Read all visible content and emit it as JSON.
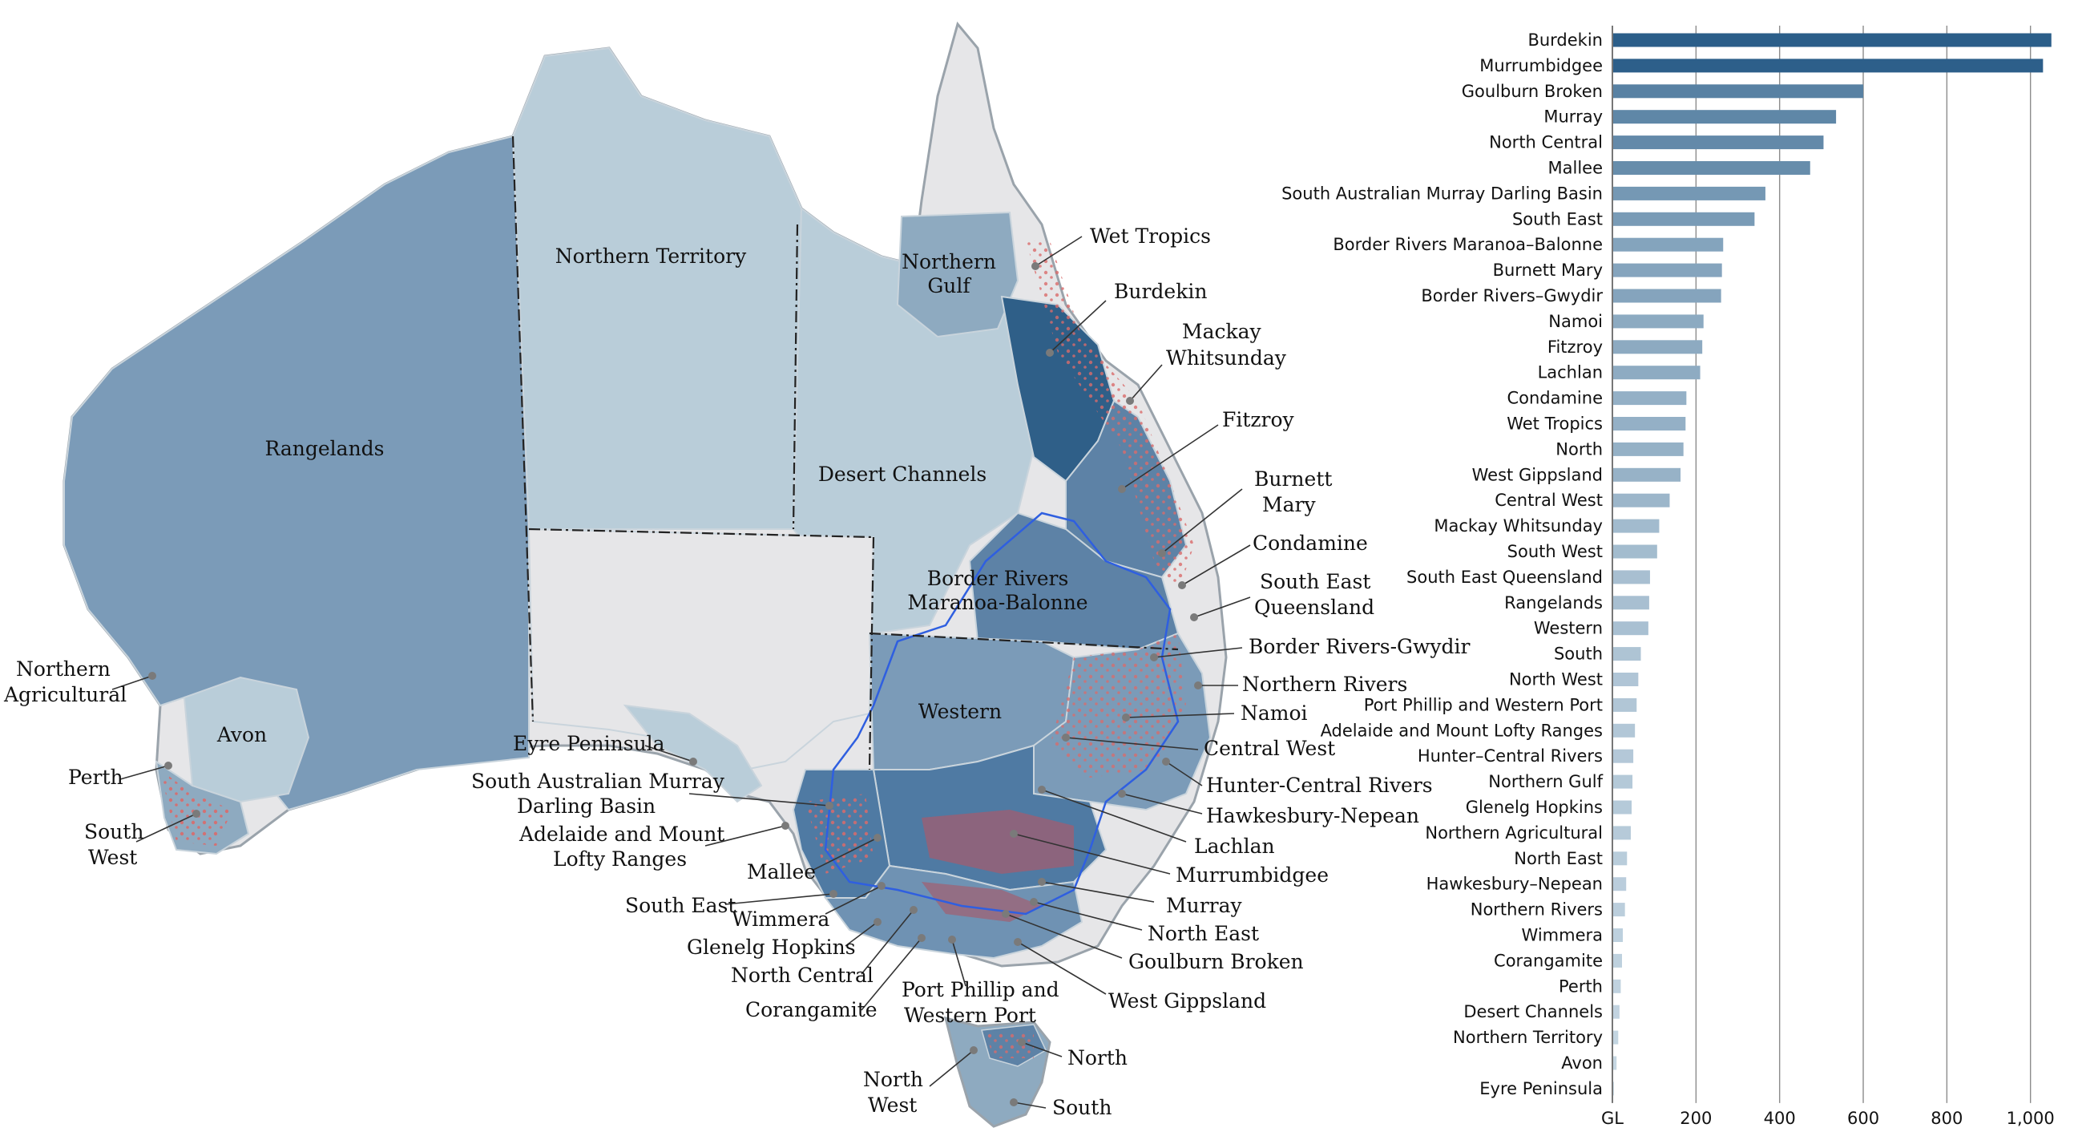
{
  "map": {
    "colors": {
      "ocean": "#ffffff",
      "coast": "#9aa3ab",
      "not_included": "#e6e6e8",
      "lightest": "#b9cdd9",
      "mid_light": "#8eaac0",
      "mid": "#7b9bb8",
      "dark": "#5d82a6",
      "darkest": "#2f5f88",
      "irrigation_red": "#d96b6b",
      "basin_outline": "#2f5fe0",
      "state_border": "#222222"
    },
    "region_labels": [
      {
        "id": "rangelands",
        "text": "Rangelands"
      },
      {
        "id": "northern-territory",
        "text": "Northern Territory"
      },
      {
        "id": "northern-gulf-1",
        "text": "Northern"
      },
      {
        "id": "northern-gulf-2",
        "text": "Gulf"
      },
      {
        "id": "desert-channels",
        "text": "Desert Channels"
      },
      {
        "id": "border-rivers-1",
        "text": "Border Rivers"
      },
      {
        "id": "border-rivers-2",
        "text": "Maranoa-Balonne"
      },
      {
        "id": "western",
        "text": "Western"
      },
      {
        "id": "avon",
        "text": "Avon"
      }
    ],
    "callouts": [
      {
        "id": "wet-tropics",
        "lines": [
          "Wet Tropics"
        ]
      },
      {
        "id": "burdekin",
        "lines": [
          "Burdekin"
        ]
      },
      {
        "id": "mackay",
        "lines": [
          "Mackay",
          "Whitsunday"
        ]
      },
      {
        "id": "fitzroy",
        "lines": [
          "Fitzroy"
        ]
      },
      {
        "id": "burnett",
        "lines": [
          "Burnett",
          "Mary"
        ]
      },
      {
        "id": "condamine",
        "lines": [
          "Condamine"
        ]
      },
      {
        "id": "seq",
        "lines": [
          "South East",
          "Queensland"
        ]
      },
      {
        "id": "border-gwydir",
        "lines": [
          "Border Rivers-Gwydir"
        ]
      },
      {
        "id": "northern-rivers",
        "lines": [
          "Northern Rivers"
        ]
      },
      {
        "id": "namoi",
        "lines": [
          "Namoi"
        ]
      },
      {
        "id": "central-west",
        "lines": [
          "Central West"
        ]
      },
      {
        "id": "hunter",
        "lines": [
          "Hunter-Central Rivers"
        ]
      },
      {
        "id": "hawkesbury",
        "lines": [
          "Hawkesbury-Nepean"
        ]
      },
      {
        "id": "lachlan",
        "lines": [
          "Lachlan"
        ]
      },
      {
        "id": "murrumbidgee",
        "lines": [
          "Murrumbidgee"
        ]
      },
      {
        "id": "murray",
        "lines": [
          "Murray"
        ]
      },
      {
        "id": "north-east",
        "lines": [
          "North East"
        ]
      },
      {
        "id": "goulburn",
        "lines": [
          "Goulburn Broken"
        ]
      },
      {
        "id": "west-gippsland",
        "lines": [
          "West Gippsland"
        ]
      },
      {
        "id": "port-phillip",
        "lines": [
          "Port Phillip and",
          "Western Port"
        ]
      },
      {
        "id": "corangamite",
        "lines": [
          "Corangamite"
        ]
      },
      {
        "id": "north-central",
        "lines": [
          "North Central"
        ]
      },
      {
        "id": "glenelg",
        "lines": [
          "Glenelg Hopkins"
        ]
      },
      {
        "id": "wimmera",
        "lines": [
          "Wimmera"
        ]
      },
      {
        "id": "south-east",
        "lines": [
          "South East"
        ]
      },
      {
        "id": "mallee",
        "lines": [
          "Mallee"
        ]
      },
      {
        "id": "adelaide",
        "lines": [
          "Adelaide and Mount",
          "Lofty Ranges"
        ]
      },
      {
        "id": "samdb",
        "lines": [
          "South Australian Murray",
          "Darling Basin"
        ]
      },
      {
        "id": "eyre",
        "lines": [
          "Eyre Peninsula"
        ]
      },
      {
        "id": "northern-agricultural",
        "lines": [
          "Northern",
          "Agricultural"
        ]
      },
      {
        "id": "perth",
        "lines": [
          "Perth"
        ]
      },
      {
        "id": "south-west",
        "lines": [
          "South",
          "West"
        ]
      },
      {
        "id": "north-tas",
        "lines": [
          "North"
        ]
      },
      {
        "id": "north-west-tas",
        "lines": [
          "North",
          "West"
        ]
      },
      {
        "id": "south-tas",
        "lines": [
          "South"
        ]
      }
    ]
  },
  "chart_data": {
    "type": "bar",
    "orientation": "horizontal",
    "categories": [
      "Burdekin",
      "Murrumbidgee",
      "Goulburn Broken",
      "Murray",
      "North Central",
      "Mallee",
      "South Australian Murray Darling Basin",
      "South East",
      "Border Rivers Maranoa–Balonne",
      "Burnett Mary",
      "Border Rivers–Gwydir",
      "Namoi",
      "Fitzroy",
      "Lachlan",
      "Condamine",
      "Wet Tropics",
      "North",
      "West Gippsland",
      "Central West",
      "Mackay Whitsunday",
      "South West",
      "South East Queensland",
      "Rangelands",
      "Western",
      "South",
      "North West",
      "Port Phillip and Western Port",
      "Adelaide and Mount Lofty Ranges",
      "Hunter–Central Rivers",
      "Northern Gulf",
      "Glenelg Hopkins",
      "Northern Agricultural",
      "North East",
      "Hawkesbury–Nepean",
      "Northern Rivers",
      "Wimmera",
      "Corangamite",
      "Perth",
      "Desert Channels",
      "Northern Territory",
      "Avon",
      "Eyre Peninsula"
    ],
    "values": [
      1050,
      1030,
      600,
      535,
      505,
      473,
      366,
      340,
      265,
      262,
      260,
      218,
      215,
      210,
      177,
      175,
      170,
      163,
      137,
      112,
      107,
      90,
      88,
      86,
      68,
      62,
      58,
      54,
      50,
      48,
      46,
      44,
      35,
      33,
      30,
      25,
      23,
      20,
      17,
      14,
      10,
      2
    ],
    "xlim": [
      0,
      1060
    ],
    "x_ticks": [
      200,
      400,
      600,
      800,
      1000
    ],
    "x_tick_labels": [
      "200",
      "400",
      "600",
      "800",
      "1,000"
    ],
    "x_unit_label": "GL",
    "grid": "vertical",
    "color_ramp": [
      "#d3e1ea",
      "#2b5e89"
    ]
  }
}
